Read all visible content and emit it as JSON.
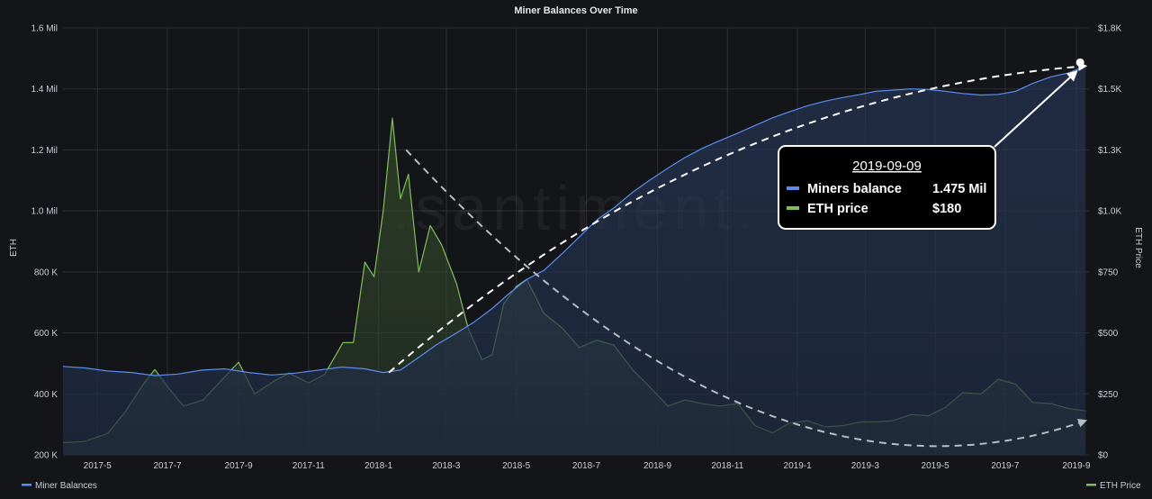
{
  "chart_data": {
    "type": "area",
    "title": "Miner Balances Over Time",
    "watermark": ".santiment.",
    "y_left_label": "ETH",
    "y_right_label": "ETH Price",
    "y_left_ticks": [
      "200 K",
      "400 K",
      "600 K",
      "800 K",
      "1.0 Mil",
      "1.2 Mil",
      "1.4 Mil",
      "1.6 Mil"
    ],
    "y_left_tick_values": [
      200000,
      400000,
      600000,
      800000,
      1000000,
      1200000,
      1400000,
      1600000
    ],
    "y_left_range": [
      200000,
      1600000
    ],
    "y_right_ticks": [
      "$0",
      "$250",
      "$500",
      "$750",
      "$1.0K",
      "$1.3K",
      "$1.5K",
      "$1.8K"
    ],
    "y_right_tick_values": [
      0,
      250,
      500,
      750,
      1000,
      1250,
      1500,
      1750
    ],
    "y_right_range": [
      0,
      1750
    ],
    "x_ticks": [
      "2017-5",
      "2017-7",
      "2017-9",
      "2017-11",
      "2018-1",
      "2018-3",
      "2018-5",
      "2018-7",
      "2018-9",
      "2018-11",
      "2019-1",
      "2019-3",
      "2019-5",
      "2019-7",
      "2019-9"
    ],
    "x_tick_dates": [
      "2017-05-01",
      "2017-07-01",
      "2017-09-01",
      "2017-11-01",
      "2018-01-01",
      "2018-03-01",
      "2018-05-01",
      "2018-07-01",
      "2018-09-01",
      "2018-11-01",
      "2019-01-01",
      "2019-03-01",
      "2019-05-01",
      "2019-07-01",
      "2019-09-01"
    ],
    "x_range": [
      "2017-04-01",
      "2019-09-12"
    ],
    "grid": true,
    "legend_position": "bottom",
    "series": [
      {
        "name": "Miner Balances",
        "axis": "left",
        "color": "#5b8def",
        "points": [
          [
            "2017-04-01",
            490000
          ],
          [
            "2017-04-20",
            485000
          ],
          [
            "2017-05-10",
            475000
          ],
          [
            "2017-05-31",
            470000
          ],
          [
            "2017-06-20",
            460000
          ],
          [
            "2017-07-10",
            465000
          ],
          [
            "2017-07-31",
            478000
          ],
          [
            "2017-08-20",
            482000
          ],
          [
            "2017-09-10",
            470000
          ],
          [
            "2017-09-30",
            462000
          ],
          [
            "2017-10-20",
            468000
          ],
          [
            "2017-11-10",
            478000
          ],
          [
            "2017-11-30",
            488000
          ],
          [
            "2017-12-20",
            482000
          ],
          [
            "2018-01-05",
            470000
          ],
          [
            "2018-01-20",
            478000
          ],
          [
            "2018-02-05",
            520000
          ],
          [
            "2018-02-20",
            560000
          ],
          [
            "2018-03-10",
            600000
          ],
          [
            "2018-03-25",
            635000
          ],
          [
            "2018-04-10",
            680000
          ],
          [
            "2018-04-25",
            730000
          ],
          [
            "2018-05-10",
            775000
          ],
          [
            "2018-05-25",
            805000
          ],
          [
            "2018-06-10",
            860000
          ],
          [
            "2018-06-25",
            915000
          ],
          [
            "2018-07-10",
            970000
          ],
          [
            "2018-07-25",
            1010000
          ],
          [
            "2018-08-10",
            1060000
          ],
          [
            "2018-08-25",
            1100000
          ],
          [
            "2018-09-10",
            1140000
          ],
          [
            "2018-09-25",
            1175000
          ],
          [
            "2018-10-10",
            1205000
          ],
          [
            "2018-10-25",
            1230000
          ],
          [
            "2018-11-10",
            1255000
          ],
          [
            "2018-11-25",
            1280000
          ],
          [
            "2018-12-10",
            1305000
          ],
          [
            "2018-12-25",
            1325000
          ],
          [
            "2019-01-10",
            1345000
          ],
          [
            "2019-01-25",
            1360000
          ],
          [
            "2019-02-10",
            1372000
          ],
          [
            "2019-02-25",
            1382000
          ],
          [
            "2019-03-10",
            1392000
          ],
          [
            "2019-03-25",
            1396000
          ],
          [
            "2019-04-10",
            1400000
          ],
          [
            "2019-04-25",
            1398000
          ],
          [
            "2019-05-10",
            1392000
          ],
          [
            "2019-05-25",
            1385000
          ],
          [
            "2019-06-10",
            1380000
          ],
          [
            "2019-06-25",
            1382000
          ],
          [
            "2019-07-10",
            1392000
          ],
          [
            "2019-07-25",
            1418000
          ],
          [
            "2019-08-10",
            1440000
          ],
          [
            "2019-08-25",
            1452000
          ],
          [
            "2019-09-09",
            1475000
          ]
        ]
      },
      {
        "name": "ETH Price",
        "axis": "right",
        "color": "#7fbf5a",
        "points": [
          [
            "2017-04-01",
            50
          ],
          [
            "2017-04-20",
            55
          ],
          [
            "2017-05-10",
            88
          ],
          [
            "2017-05-25",
            175
          ],
          [
            "2017-06-10",
            290
          ],
          [
            "2017-06-20",
            350
          ],
          [
            "2017-07-01",
            280
          ],
          [
            "2017-07-15",
            200
          ],
          [
            "2017-08-01",
            225
          ],
          [
            "2017-08-15",
            295
          ],
          [
            "2017-09-01",
            380
          ],
          [
            "2017-09-15",
            250
          ],
          [
            "2017-10-01",
            300
          ],
          [
            "2017-10-15",
            335
          ],
          [
            "2017-11-01",
            295
          ],
          [
            "2017-11-15",
            330
          ],
          [
            "2017-12-01",
            460
          ],
          [
            "2017-12-10",
            460
          ],
          [
            "2017-12-20",
            790
          ],
          [
            "2017-12-28",
            730
          ],
          [
            "2018-01-05",
            1000
          ],
          [
            "2018-01-13",
            1380
          ],
          [
            "2018-01-20",
            1050
          ],
          [
            "2018-01-27",
            1150
          ],
          [
            "2018-02-05",
            750
          ],
          [
            "2018-02-15",
            940
          ],
          [
            "2018-02-25",
            860
          ],
          [
            "2018-03-10",
            700
          ],
          [
            "2018-03-20",
            520
          ],
          [
            "2018-04-01",
            390
          ],
          [
            "2018-04-10",
            410
          ],
          [
            "2018-04-20",
            620
          ],
          [
            "2018-05-01",
            690
          ],
          [
            "2018-05-10",
            720
          ],
          [
            "2018-05-25",
            580
          ],
          [
            "2018-06-10",
            520
          ],
          [
            "2018-06-25",
            440
          ],
          [
            "2018-07-10",
            470
          ],
          [
            "2018-07-25",
            450
          ],
          [
            "2018-08-10",
            350
          ],
          [
            "2018-08-25",
            280
          ],
          [
            "2018-09-10",
            200
          ],
          [
            "2018-09-25",
            225
          ],
          [
            "2018-10-10",
            210
          ],
          [
            "2018-10-25",
            200
          ],
          [
            "2018-11-10",
            210
          ],
          [
            "2018-11-25",
            120
          ],
          [
            "2018-12-10",
            90
          ],
          [
            "2018-12-25",
            130
          ],
          [
            "2019-01-10",
            140
          ],
          [
            "2019-01-25",
            115
          ],
          [
            "2019-02-10",
            120
          ],
          [
            "2019-02-25",
            135
          ],
          [
            "2019-03-10",
            135
          ],
          [
            "2019-03-25",
            140
          ],
          [
            "2019-04-10",
            165
          ],
          [
            "2019-04-25",
            160
          ],
          [
            "2019-05-10",
            195
          ],
          [
            "2019-05-25",
            255
          ],
          [
            "2019-06-10",
            250
          ],
          [
            "2019-06-25",
            310
          ],
          [
            "2019-07-10",
            290
          ],
          [
            "2019-07-25",
            215
          ],
          [
            "2019-08-10",
            210
          ],
          [
            "2019-08-25",
            190
          ],
          [
            "2019-09-09",
            180
          ]
        ]
      }
    ],
    "annotation": {
      "date": "2019-09-09",
      "rows": [
        {
          "label": "Miners balance",
          "value": "1.475 Mil",
          "color": "#5b8def"
        },
        {
          "label": "ETH price",
          "value": "$180",
          "color": "#7fbf5a"
        }
      ]
    },
    "trend_arrows": [
      {
        "from": [
          "2018-01-10",
          470000
        ],
        "ctrl": [
          "2018-10-15",
          1380000
        ],
        "to": [
          "2019-09-09",
          1475000
        ],
        "axis": "left",
        "color": "#ffffff"
      },
      {
        "from": [
          "2018-01-25",
          1250
        ],
        "ctrl": [
          "2018-12-01",
          -320
        ],
        "to": [
          "2019-09-09",
          140
        ],
        "axis": "right",
        "color": "#b8bcc4"
      }
    ]
  }
}
